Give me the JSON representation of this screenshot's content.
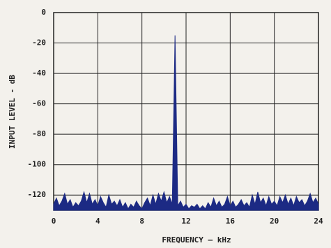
{
  "chart_data": {
    "type": "area",
    "x_label": "FREQUENCY — kHz",
    "y_label": "INPUT LEVEL - dB",
    "xlim": [
      0,
      24
    ],
    "xticks": [
      0,
      4,
      8,
      12,
      16,
      20,
      24
    ],
    "ylim": [
      -130,
      0
    ],
    "yticks": [
      0,
      -20,
      -40,
      -60,
      -80,
      -100,
      -120
    ],
    "grid": true,
    "color": "#1c2a84",
    "x": [
      0,
      0.25,
      0.5,
      0.75,
      1,
      1.25,
      1.5,
      1.75,
      2,
      2.25,
      2.5,
      2.75,
      3,
      3.25,
      3.5,
      3.75,
      4,
      4.25,
      4.5,
      4.75,
      5,
      5.25,
      5.5,
      5.75,
      6,
      6.25,
      6.5,
      6.75,
      7,
      7.25,
      7.5,
      7.75,
      8,
      8.25,
      8.5,
      8.75,
      9,
      9.25,
      9.5,
      9.75,
      10,
      10.25,
      10.5,
      10.75,
      11,
      11.25,
      11.5,
      11.75,
      12,
      12.25,
      12.5,
      12.75,
      13,
      13.25,
      13.5,
      13.75,
      14,
      14.25,
      14.5,
      14.75,
      15,
      15.25,
      15.5,
      15.75,
      16,
      16.25,
      16.5,
      16.75,
      17,
      17.25,
      17.5,
      17.75,
      18,
      18.25,
      18.5,
      18.75,
      19,
      19.25,
      19.5,
      19.75,
      20,
      20.25,
      20.5,
      20.75,
      21,
      21.25,
      21.5,
      21.75,
      22,
      22.25,
      22.5,
      22.75,
      23,
      23.25,
      23.5,
      23.75,
      24
    ],
    "values": [
      -126,
      -122,
      -127,
      -124,
      -119,
      -126,
      -123,
      -128,
      -125,
      -127,
      -124,
      -118,
      -125,
      -119,
      -126,
      -123,
      -127,
      -121,
      -125,
      -128,
      -120,
      -126,
      -124,
      -127,
      -123,
      -128,
      -125,
      -129,
      -126,
      -128,
      -124,
      -127,
      -129,
      -125,
      -122,
      -127,
      -120,
      -126,
      -119,
      -124,
      -118,
      -125,
      -121,
      -126,
      -15,
      -127,
      -124,
      -128,
      -126,
      -129,
      -127,
      -128,
      -126,
      -129,
      -127,
      -129,
      -125,
      -128,
      -122,
      -127,
      -124,
      -128,
      -126,
      -121,
      -127,
      -124,
      -128,
      -126,
      -123,
      -127,
      -125,
      -128,
      -120,
      -126,
      -118,
      -125,
      -122,
      -127,
      -121,
      -126,
      -124,
      -127,
      -121,
      -125,
      -120,
      -126,
      -122,
      -127,
      -121,
      -125,
      -123,
      -127,
      -124,
      -119,
      -125,
      -122,
      -126
    ]
  }
}
